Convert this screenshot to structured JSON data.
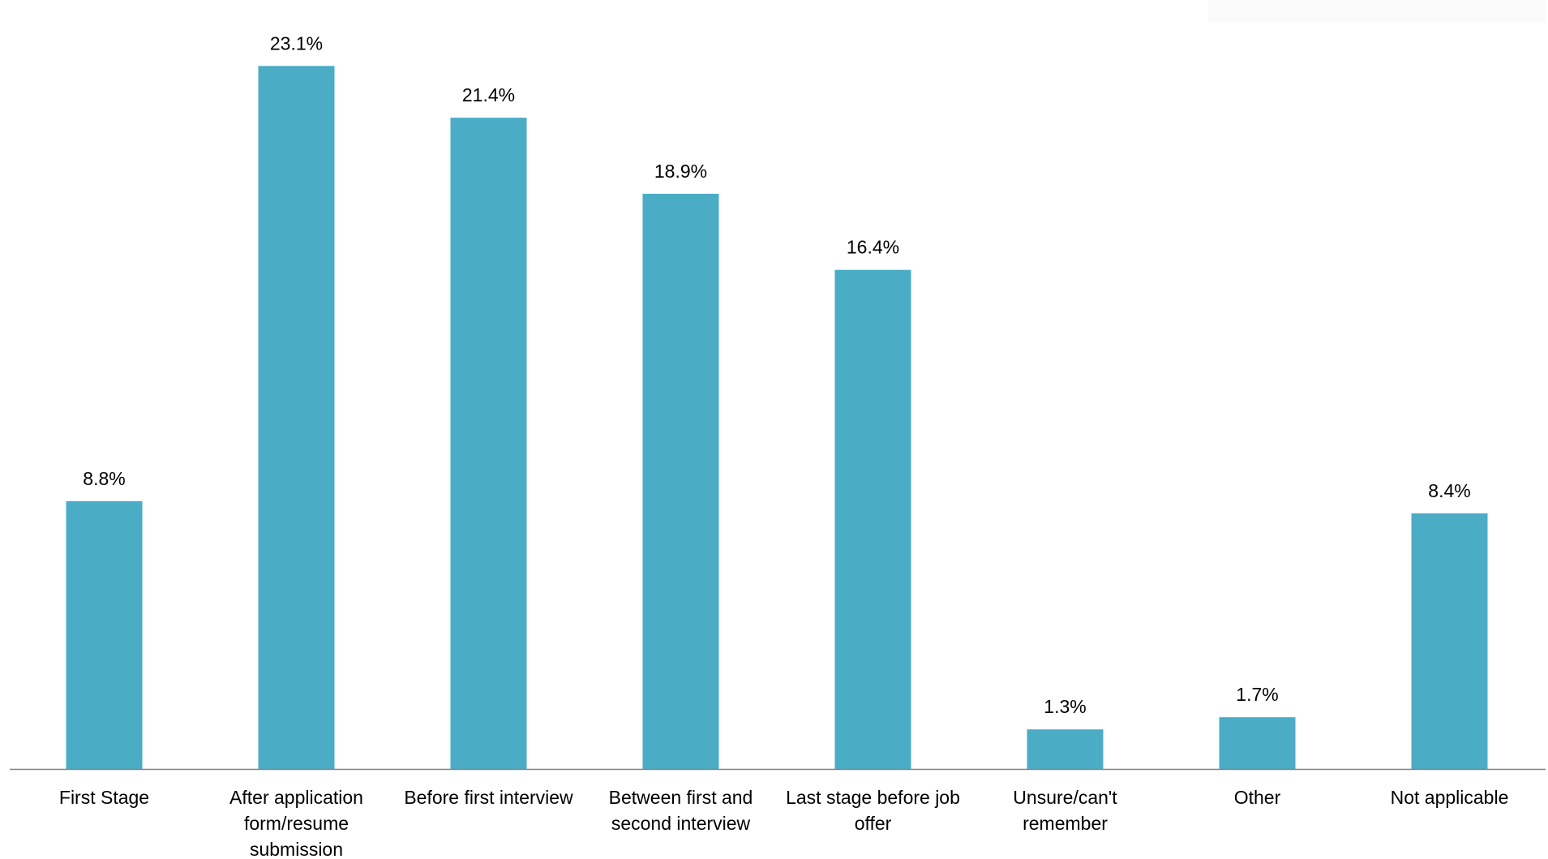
{
  "chart_data": {
    "type": "bar",
    "categories": [
      "First Stage",
      "After application form/resume submission",
      "Before first interview",
      "Between first and second interview",
      "Last stage before job offer",
      "Unsure/can't remember",
      "Other",
      "Not applicable"
    ],
    "category_lines": [
      [
        "First Stage"
      ],
      [
        "After application",
        "form/resume",
        "submission"
      ],
      [
        "Before first interview"
      ],
      [
        "Between first and",
        "second interview"
      ],
      [
        "Last stage before job",
        "offer"
      ],
      [
        "Unsure/can't",
        "remember"
      ],
      [
        "Other"
      ],
      [
        "Not applicable"
      ]
    ],
    "values": [
      8.8,
      23.1,
      21.4,
      18.9,
      16.4,
      1.3,
      1.7,
      8.4
    ],
    "data_labels": [
      "8.8%",
      "23.1%",
      "21.4%",
      "18.9%",
      "16.4%",
      "1.3%",
      "1.7%",
      "8.4%"
    ],
    "ylim": [
      0,
      24.2
    ],
    "grid": false,
    "legend": "none",
    "bar_color": "#4BACC6",
    "axis_color": "#808080"
  }
}
